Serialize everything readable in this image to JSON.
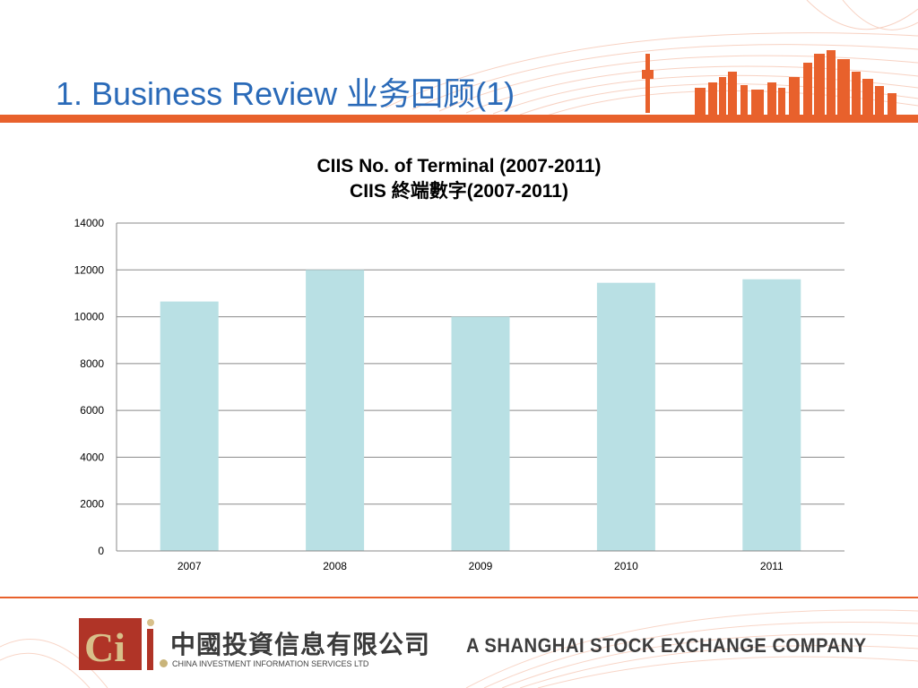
{
  "slide": {
    "title": "1. Business Review 业务回顾(1)"
  },
  "chart_data": {
    "type": "bar",
    "title_line1": "CIIS No. of Terminal (2007-2011)",
    "title_line2": "CIIS 終端數字(2007-2011)",
    "categories": [
      "2007",
      "2008",
      "2009",
      "2010",
      "2011"
    ],
    "values": [
      10650,
      12000,
      10000,
      11450,
      11600
    ],
    "ylim": [
      0,
      14000
    ],
    "yticks": [
      0,
      2000,
      4000,
      6000,
      8000,
      10000,
      12000,
      14000
    ],
    "grid": true,
    "legend": "none",
    "bar_color": "#b9e0e4"
  },
  "footer": {
    "company_name_cn": "中國投資信息有限公司",
    "company_name_en": "CHINA INVESTMENT INFORMATION SERVICES LTD",
    "tagline": "A SHANGHAI STOCK EXCHANGE COMPANY",
    "logo_text": "Ci"
  },
  "colors": {
    "title_blue": "#2a6ab8",
    "accent_orange": "#e8612c",
    "logo_red": "#b03427",
    "logo_gold": "#c9b47a"
  }
}
